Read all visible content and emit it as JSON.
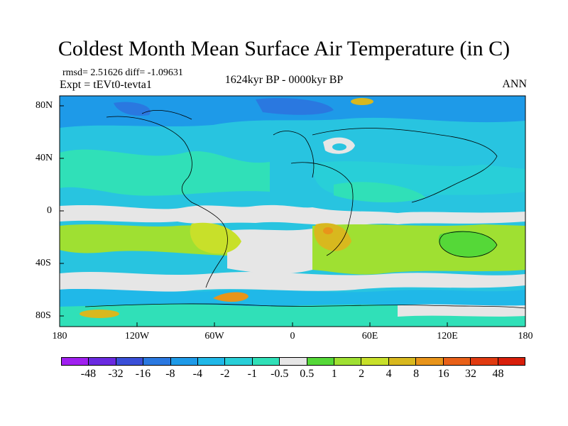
{
  "title": "Coldest Month Mean Surface Air Temperature (in C)",
  "stats": "rmsd= 2.51626 diff= -1.09631",
  "experiment": "Expt = tEVt0-tevta1",
  "period": "1624kyr BP - 0000kyr BP",
  "season": "ANN",
  "lat_ticks": [
    "80N",
    "40N",
    "0",
    "40S",
    "80S"
  ],
  "lon_ticks": [
    "180",
    "120W",
    "60W",
    "0",
    "60E",
    "120E",
    "180"
  ],
  "colorbar": {
    "labels": [
      "-48",
      "-32",
      "-16",
      "-8",
      "-4",
      "-2",
      "-1",
      "-0.5",
      "0.5",
      "1",
      "2",
      "4",
      "8",
      "16",
      "32",
      "48"
    ],
    "colors": [
      "#a020f0",
      "#6a2ae0",
      "#3a4fd8",
      "#2a78e0",
      "#1e9ae8",
      "#20b8e8",
      "#28cfd8",
      "#30e0b8",
      "#e6e6e6",
      "#55d838",
      "#9fe032",
      "#c8e02a",
      "#d8b81e",
      "#e8941a",
      "#e86018",
      "#e03a10",
      "#d81e0a"
    ]
  },
  "colors": {
    "ocean_base": "#28c4e0",
    "land_line": "#000000",
    "neutral": "#e6e6e6"
  }
}
